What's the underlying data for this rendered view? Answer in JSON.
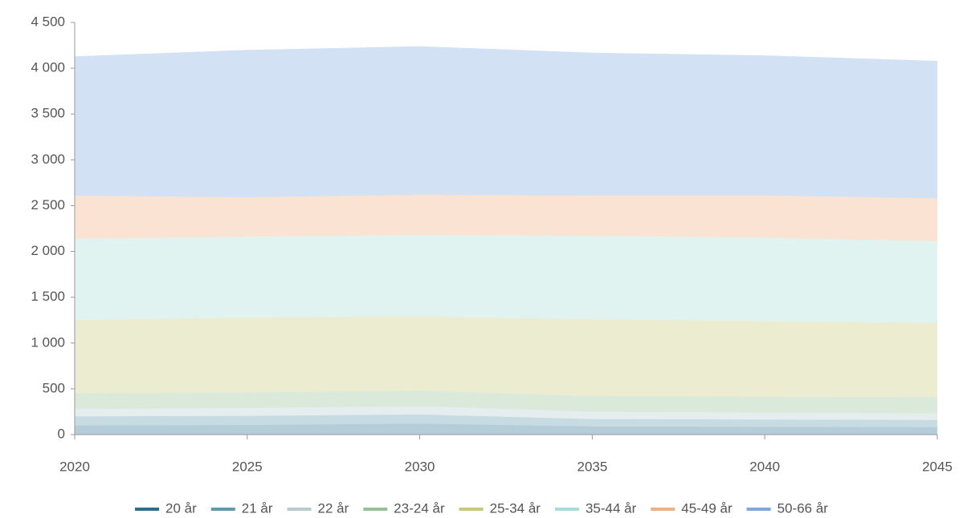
{
  "chart_data": {
    "type": "stacked_area",
    "x": [
      2020,
      2025,
      2030,
      2035,
      2040,
      2045
    ],
    "xlim": [
      2020,
      2045
    ],
    "xticks": [
      2020,
      2025,
      2030,
      2035,
      2040,
      2045
    ],
    "ylim": [
      0,
      4500
    ],
    "yticks": [
      0,
      500,
      {
        "value": 1000,
        "label": "1 000"
      },
      {
        "value": 1500,
        "label": "1 500"
      },
      {
        "value": 2000,
        "label": "2 000"
      },
      {
        "value": 2500,
        "label": "2 500"
      },
      {
        "value": 3000,
        "label": "3 000"
      },
      {
        "value": 3500,
        "label": "3 500"
      },
      {
        "value": 4000,
        "label": "4 000"
      },
      {
        "value": 4500,
        "label": "4 500"
      }
    ],
    "legend": "bottom",
    "series": [
      {
        "name": "20 år",
        "color": "#2a6f8f",
        "values": [
          100,
          105,
          120,
          90,
          85,
          80
        ]
      },
      {
        "name": "21 år",
        "color": "#5f9bab",
        "values": [
          100,
          100,
          100,
          80,
          80,
          80
        ]
      },
      {
        "name": "22 år",
        "color": "#b8ccd0",
        "values": [
          80,
          85,
          90,
          80,
          75,
          70
        ]
      },
      {
        "name": "23-24 år",
        "color": "#96c096",
        "values": [
          170,
          170,
          170,
          170,
          175,
          180
        ]
      },
      {
        "name": "25-34 år",
        "color": "#c8c87a",
        "values": [
          800,
          820,
          810,
          840,
          825,
          810
        ]
      },
      {
        "name": "35-44 år",
        "color": "#a8dcd8",
        "values": [
          890,
          880,
          890,
          910,
          910,
          890
        ]
      },
      {
        "name": "45-49 år",
        "color": "#f0b080",
        "values": [
          470,
          430,
          440,
          440,
          460,
          470
        ]
      },
      {
        "name": "50-66 år",
        "color": "#80a8e0",
        "values": [
          1520,
          1610,
          1620,
          1560,
          1530,
          1500
        ]
      }
    ]
  }
}
